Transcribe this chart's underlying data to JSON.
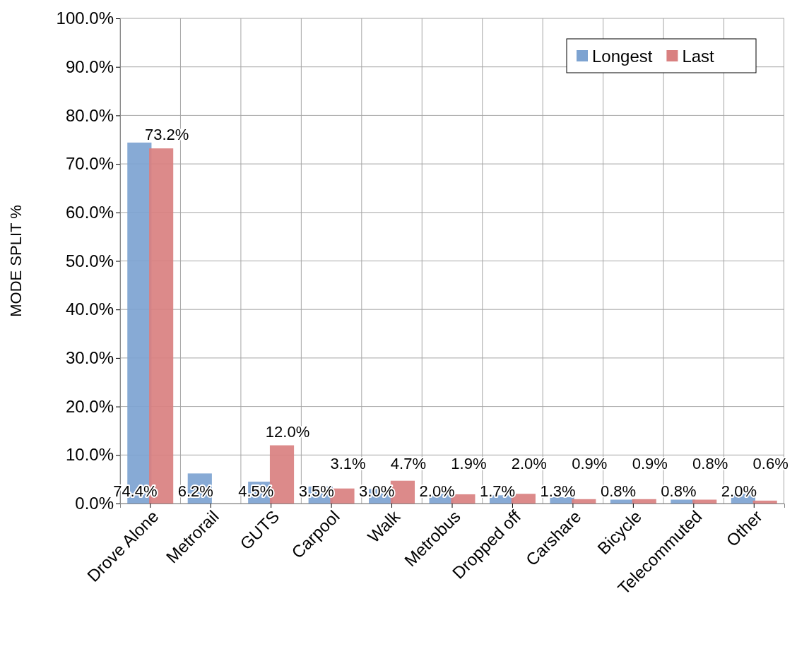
{
  "chart_data": {
    "type": "bar",
    "ylabel": "MODE SPLIT %",
    "categories": [
      "Drove Alone",
      "Metrorail",
      "GUTS",
      "Carpool",
      "Walk",
      "Metrobus",
      "Dropped off",
      "Carshare",
      "Bicycle",
      "Telecommuted",
      "Other"
    ],
    "series": [
      {
        "name": "Longest",
        "color": "#7da3d1",
        "values": [
          74.4,
          6.2,
          4.5,
          3.5,
          3.0,
          2.0,
          1.7,
          1.3,
          0.8,
          0.8,
          2.0
        ],
        "value_labels": [
          "74.4%",
          "6.2%",
          "4.5%",
          "3.5%",
          "3.0%",
          "2.0%",
          "1.7%",
          "1.3%",
          "0.8%",
          "0.8%",
          "2.0%"
        ]
      },
      {
        "name": "Last",
        "color": "#d98080",
        "values": [
          73.2,
          null,
          12.0,
          3.1,
          4.7,
          1.9,
          2.0,
          0.9,
          0.9,
          0.8,
          0.6
        ],
        "value_labels": [
          "73.2%",
          null,
          "12.0%",
          "3.1%",
          "4.7%",
          "1.9%",
          "2.0%",
          "0.9%",
          "0.9%",
          "0.8%",
          "0.6%"
        ]
      }
    ],
    "ylim": [
      0,
      100
    ],
    "yticks": [
      {
        "value": 0,
        "label": "0.0%"
      },
      {
        "value": 10,
        "label": "10.0%"
      },
      {
        "value": 20,
        "label": "20.0%"
      },
      {
        "value": 30,
        "label": "30.0%"
      },
      {
        "value": 40,
        "label": "40.0%"
      },
      {
        "value": 50,
        "label": "50.0%"
      },
      {
        "value": 60,
        "label": "60.0%"
      },
      {
        "value": 70,
        "label": "70.0%"
      },
      {
        "value": 80,
        "label": "80.0%"
      },
      {
        "value": 90,
        "label": "90.0%"
      },
      {
        "value": 100,
        "label": "100.0%"
      }
    ],
    "grid": true,
    "legend": "top right"
  }
}
